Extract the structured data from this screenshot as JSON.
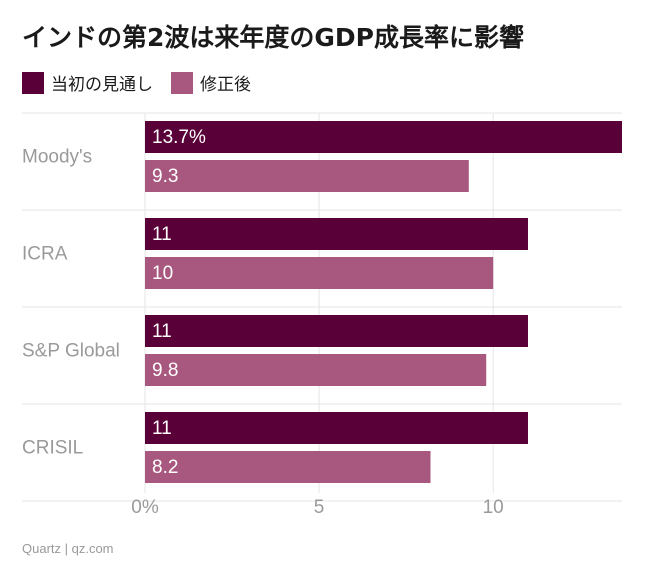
{
  "title": "インドの第2波は来年度のGDP成長率に影響",
  "source": "Quartz | qz.com",
  "colors": {
    "initial": "#5a0038",
    "revised": "#a8577e",
    "grid": "#e6e6e6"
  },
  "chart_data": {
    "type": "bar",
    "orientation": "horizontal",
    "title": "インドの第2波は来年度のGDP成長率に影響",
    "categories": [
      "Moody's",
      "ICRA",
      "S&P Global",
      "CRISIL"
    ],
    "series": [
      {
        "name": "当初の見通し",
        "values": [
          13.7,
          11,
          11,
          11
        ],
        "labels": [
          "13.7%",
          "11",
          "11",
          "11"
        ]
      },
      {
        "name": "修正後",
        "values": [
          9.3,
          10,
          9.8,
          8.2
        ],
        "labels": [
          "9.3",
          "10",
          "9.8",
          "8.2"
        ]
      }
    ],
    "xlim": [
      0,
      13.7
    ],
    "xticks": [
      0,
      5,
      10
    ],
    "xtick_labels": [
      "0%",
      "5",
      "10"
    ],
    "grid": true,
    "legend": "top-left"
  }
}
